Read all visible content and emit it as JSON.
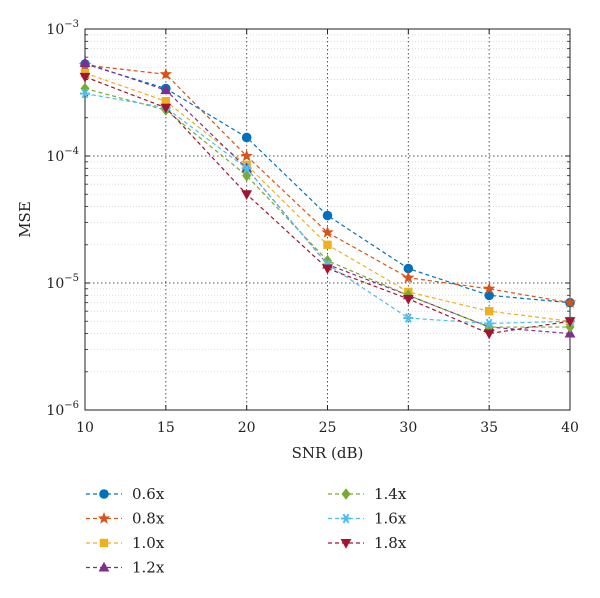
{
  "chart_data": {
    "type": "line",
    "title": "",
    "xlabel": "SNR (dB)",
    "ylabel": "MSE",
    "xscale": "linear",
    "yscale": "log",
    "xlim": [
      10,
      40
    ],
    "ylim": [
      1e-06,
      0.001
    ],
    "x": [
      10,
      15,
      20,
      25,
      30,
      35,
      40
    ],
    "x_ticks": [
      "10",
      "15",
      "20",
      "25",
      "30",
      "35",
      "40"
    ],
    "y_ticks": [
      {
        "base": "10",
        "exp": "−6"
      },
      {
        "base": "10",
        "exp": "−5"
      },
      {
        "base": "10",
        "exp": "−4"
      },
      {
        "base": "10",
        "exp": "−3"
      }
    ],
    "grid": true,
    "legend_position": "bottom",
    "series": [
      {
        "name": "0.6x",
        "color": "#0072BD",
        "marker": "circle",
        "values": [
          0.00053,
          0.00034,
          0.00014,
          3.4e-05,
          1.3e-05,
          8e-06,
          7e-06
        ]
      },
      {
        "name": "0.8x",
        "color": "#D95319",
        "marker": "star",
        "values": [
          0.00052,
          0.00044,
          0.0001,
          2.5e-05,
          1.1e-05,
          9e-06,
          7e-06
        ]
      },
      {
        "name": "1.0x",
        "color": "#EDB120",
        "marker": "square",
        "values": [
          0.00045,
          0.00027,
          8.5e-05,
          2e-05,
          8.5e-06,
          6e-06,
          5e-06
        ]
      },
      {
        "name": "1.2x",
        "color": "#7E2F8E",
        "marker": "triangle-up",
        "values": [
          0.00054,
          0.00033,
          8e-05,
          1.4e-05,
          8e-06,
          4.5e-06,
          4e-06
        ]
      },
      {
        "name": "1.4x",
        "color": "#77AC30",
        "marker": "diamond",
        "values": [
          0.00034,
          0.00023,
          7e-05,
          1.5e-05,
          8e-06,
          4.5e-06,
          4.5e-06
        ]
      },
      {
        "name": "1.6x",
        "color": "#4DBEEE",
        "marker": "asterisk",
        "values": [
          0.00031,
          0.00024,
          8e-05,
          1.4e-05,
          5.3e-06,
          4.8e-06,
          5e-06
        ]
      },
      {
        "name": "1.8x",
        "color": "#A2142F",
        "marker": "triangle-down",
        "values": [
          0.00042,
          0.00024,
          5e-05,
          1.3e-05,
          7.5e-06,
          4e-06,
          5e-06
        ]
      }
    ]
  }
}
